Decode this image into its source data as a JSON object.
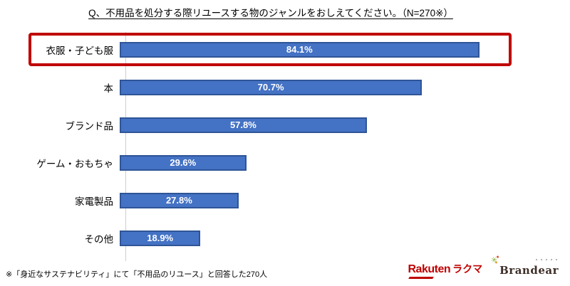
{
  "title": "Q、不用品を処分する際リユースする物のジャンルをおしえてください。（N=270※）",
  "footnote": "※「身近なサステナビリティ」にて「不用品のリユース」と回答した270人",
  "chart_data": {
    "type": "bar",
    "orientation": "horizontal",
    "title": "Q、不用品を処分する際リユースする物のジャンルをおしえてください。（N=270※）",
    "categories": [
      "衣服・子ども服",
      "本",
      "ブランド品",
      "ゲーム・おもちゃ",
      "家電製品",
      "その他"
    ],
    "values": [
      84.1,
      70.7,
      57.8,
      29.6,
      27.8,
      18.9
    ],
    "value_labels": [
      "84.1%",
      "70.7%",
      "57.8%",
      "29.6%",
      "27.8%",
      "18.9%"
    ],
    "unit": "%",
    "xlim": [
      0,
      100
    ],
    "grid": false,
    "legend": false,
    "highlighted_index": 0,
    "bar_color": "#4472c4",
    "bar_border_color": "#2f5597",
    "value_label_color": "#ffffff",
    "highlight_box_color": "#c00000",
    "axis_color": "#d0cece"
  },
  "logos": {
    "rakuten": {
      "word": "Rakuten",
      "suffix": "ラクマ",
      "color": "#bf0000"
    },
    "brandear": {
      "word": "Brandear",
      "color": "#3e2f28"
    }
  }
}
